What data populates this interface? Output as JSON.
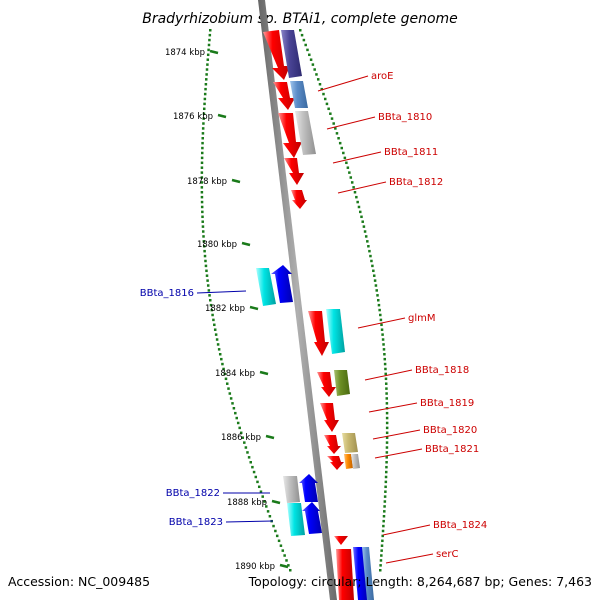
{
  "title": "Bradyrhizobium sp. BTAi1, complete genome",
  "footer": {
    "accession": "Accession: NC_009485",
    "topology": "Topology: circular; Length: 8,264,687 bp; Genes: 7,463"
  },
  "colors": {
    "backbone": "#888888",
    "tick": "#1a7a1a",
    "forward_label": "#cc0000",
    "reverse_label": "#0000aa"
  },
  "ticks": [
    {
      "kbp": 1874,
      "label": "1874 kbp"
    },
    {
      "kbp": 1876,
      "label": "1876 kbp"
    },
    {
      "kbp": 1878,
      "label": "1878 kbp"
    },
    {
      "kbp": 1880,
      "label": "1880 kbp"
    },
    {
      "kbp": 1882,
      "label": "1882 kbp"
    },
    {
      "kbp": 1884,
      "label": "1884 kbp"
    },
    {
      "kbp": 1886,
      "label": "1886 kbp"
    },
    {
      "kbp": 1888,
      "label": "1888 kbp"
    },
    {
      "kbp": 1890,
      "label": "1890 kbp"
    }
  ],
  "labels": [
    {
      "text": "aroE",
      "strand": "forward"
    },
    {
      "text": "BBta_1810",
      "strand": "forward"
    },
    {
      "text": "BBta_1811",
      "strand": "forward"
    },
    {
      "text": "BBta_1812",
      "strand": "forward"
    },
    {
      "text": "BBta_1816",
      "strand": "reverse"
    },
    {
      "text": "glmM",
      "strand": "forward"
    },
    {
      "text": "BBta_1818",
      "strand": "forward"
    },
    {
      "text": "BBta_1819",
      "strand": "forward"
    },
    {
      "text": "BBta_1820",
      "strand": "forward"
    },
    {
      "text": "BBta_1821",
      "strand": "forward"
    },
    {
      "text": "BBta_1822",
      "strand": "reverse"
    },
    {
      "text": "BBta_1823",
      "strand": "reverse"
    },
    {
      "text": "BBta_1824",
      "strand": "forward"
    },
    {
      "text": "serC",
      "strand": "forward"
    }
  ]
}
